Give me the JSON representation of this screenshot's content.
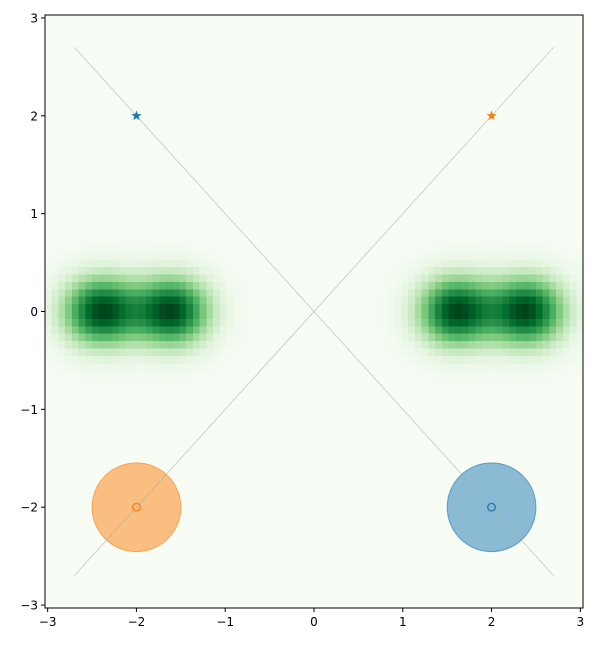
{
  "chart_data": {
    "type": "heatmap",
    "title": "",
    "xlabel": "",
    "ylabel": "",
    "xlim": [
      -3.03,
      3.03
    ],
    "ylim": [
      -3.03,
      3.03
    ],
    "xticks": [
      -3,
      -2,
      -1,
      0,
      1,
      2,
      3
    ],
    "yticks": [
      -3,
      -2,
      -1,
      0,
      1,
      2,
      3
    ],
    "xtick_labels": [
      "−3",
      "−2",
      "−1",
      "0",
      "1",
      "2",
      "3"
    ],
    "ytick_labels": [
      "−3",
      "−2",
      "−1",
      "0",
      "1",
      "2",
      "3"
    ],
    "grid": false,
    "legend": "none",
    "heatmap": {
      "colormap": "Greens",
      "low_color": "#f7fcf5",
      "high_color": "#00441b",
      "gaussian_centers": [
        [
          -2.4,
          0
        ],
        [
          -1.6,
          0
        ],
        [
          1.6,
          0
        ],
        [
          2.4,
          0
        ]
      ],
      "x_sigma": 0.3,
      "y_sigma": 0.25
    },
    "trajectories": [
      {
        "from": [
          -2,
          2
        ],
        "to": [
          2,
          -2
        ],
        "color": "#1f77b4",
        "line_range": [
          -2.7,
          2.7
        ]
      },
      {
        "from": [
          2,
          2
        ],
        "to": [
          -2,
          -2
        ],
        "color": "#ff7f0e",
        "line_range": [
          2.7,
          -2.7
        ]
      }
    ],
    "start_markers": [
      {
        "x": -2,
        "y": 2,
        "color": "#1f77b4",
        "marker": "star"
      },
      {
        "x": 2,
        "y": 2,
        "color": "#ff7f0e",
        "marker": "star"
      }
    ],
    "goal_markers": [
      {
        "x": 2,
        "y": -2,
        "color": "#1f77b4",
        "marker": "open-circle"
      },
      {
        "x": -2,
        "y": -2,
        "color": "#ff7f0e",
        "marker": "open-circle"
      }
    ],
    "goal_regions": [
      {
        "x": 2,
        "y": -2,
        "radius": 0.5,
        "color": "#1f77b4",
        "alpha": 0.5
      },
      {
        "x": -2,
        "y": -2,
        "radius": 0.5,
        "color": "#ff7f0e",
        "alpha": 0.5
      }
    ]
  }
}
